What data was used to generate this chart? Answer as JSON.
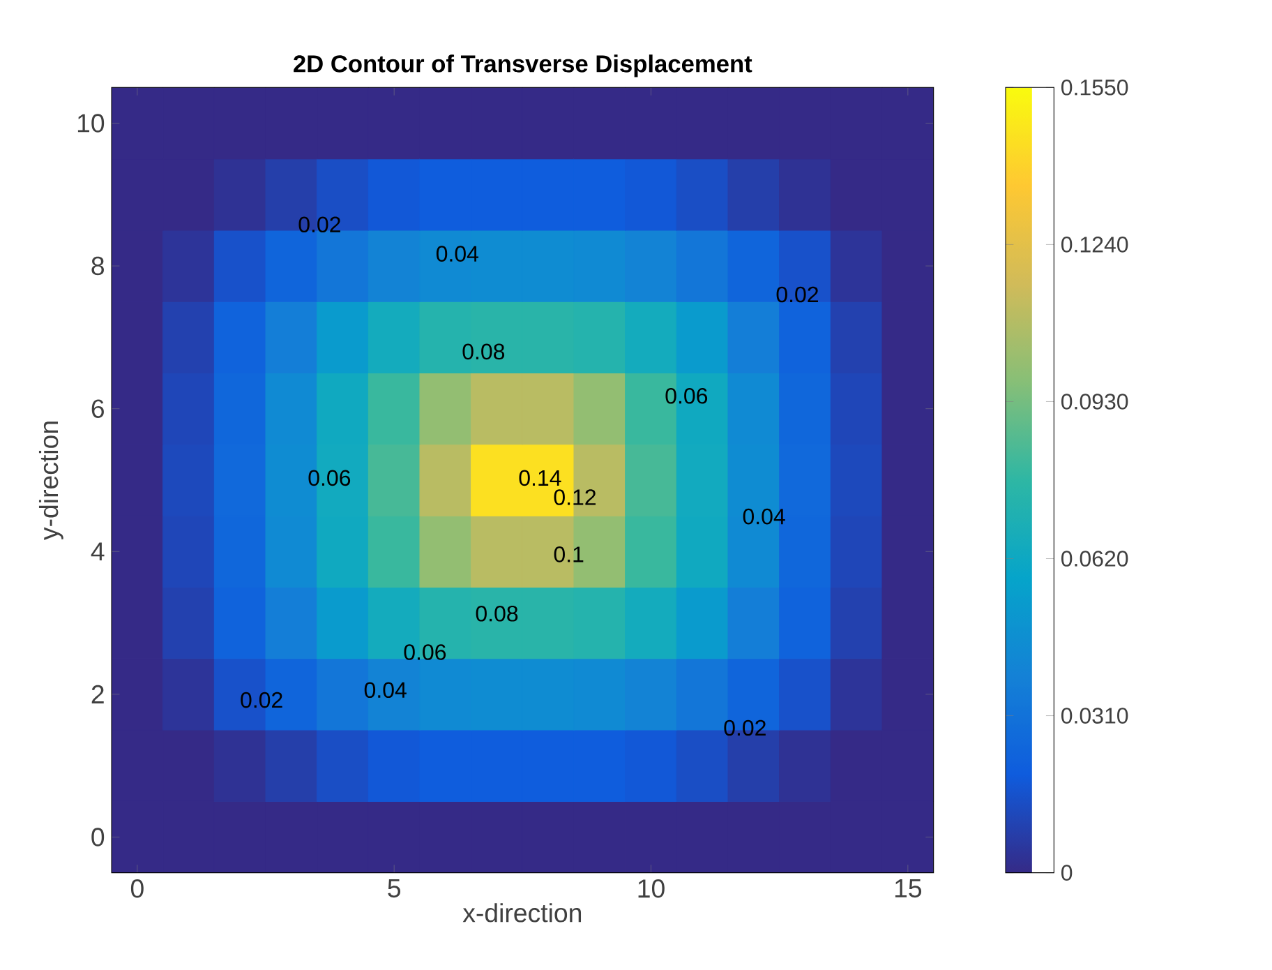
{
  "chart_data": {
    "type": "heatmap",
    "title": "2D Contour of Transverse Displacement",
    "xlabel": "x-direction",
    "ylabel": "y-direction",
    "categories": [
      "0",
      null,
      null,
      null,
      null,
      "5",
      null,
      null,
      null,
      null,
      "10",
      null,
      null,
      null,
      null,
      "15"
    ],
    "y_categories": [
      "10",
      null,
      "8",
      null,
      "6",
      null,
      "4",
      null,
      "2",
      null,
      "0"
    ],
    "cells": [
      [
        0,
        0,
        0,
        0,
        0,
        0,
        0,
        0,
        0,
        0,
        0,
        0,
        0,
        0,
        0,
        0
      ],
      [
        0,
        0,
        0.003,
        0.008,
        0.014,
        0.018,
        0.02,
        0.02,
        0.02,
        0.02,
        0.018,
        0.014,
        0.008,
        0.003,
        0,
        0
      ],
      [
        0,
        0.004,
        0.015,
        0.024,
        0.033,
        0.04,
        0.044,
        0.045,
        0.045,
        0.044,
        0.04,
        0.033,
        0.024,
        0.015,
        0.004,
        0
      ],
      [
        0,
        0.009,
        0.023,
        0.037,
        0.053,
        0.065,
        0.073,
        0.075,
        0.075,
        0.073,
        0.065,
        0.053,
        0.037,
        0.023,
        0.009,
        0
      ],
      [
        0,
        0.011,
        0.025,
        0.044,
        0.063,
        0.08,
        0.1,
        0.11,
        0.11,
        0.1,
        0.08,
        0.063,
        0.044,
        0.025,
        0.011,
        0
      ],
      [
        0,
        0.012,
        0.026,
        0.045,
        0.064,
        0.083,
        0.11,
        0.145,
        0.145,
        0.11,
        0.083,
        0.064,
        0.045,
        0.026,
        0.012,
        0
      ],
      [
        0,
        0.011,
        0.025,
        0.044,
        0.063,
        0.08,
        0.1,
        0.11,
        0.11,
        0.1,
        0.08,
        0.063,
        0.044,
        0.025,
        0.011,
        0
      ],
      [
        0,
        0.009,
        0.023,
        0.037,
        0.053,
        0.065,
        0.073,
        0.075,
        0.075,
        0.073,
        0.065,
        0.053,
        0.037,
        0.023,
        0.009,
        0
      ],
      [
        0,
        0.004,
        0.015,
        0.024,
        0.033,
        0.04,
        0.044,
        0.045,
        0.045,
        0.044,
        0.04,
        0.033,
        0.024,
        0.015,
        0.004,
        0
      ],
      [
        0,
        0,
        0.003,
        0.008,
        0.014,
        0.018,
        0.02,
        0.02,
        0.02,
        0.02,
        0.018,
        0.014,
        0.008,
        0.003,
        0,
        0
      ],
      [
        0,
        0,
        0,
        0,
        0,
        0,
        0,
        0,
        0,
        0,
        0,
        0,
        0,
        0,
        0,
        0
      ]
    ],
    "clim": [
      0,
      0.155
    ],
    "cticks": [
      {
        "value": 0,
        "label": "0"
      },
      {
        "value": 0.031,
        "label": "0.0310"
      },
      {
        "value": 0.062,
        "label": "0.0620"
      },
      {
        "value": 0.093,
        "label": "0.0930"
      },
      {
        "value": 0.124,
        "label": "0.1240"
      },
      {
        "value": 0.155,
        "label": "0.1550"
      }
    ],
    "annotations": [
      "0.02",
      "0.04",
      "0.02",
      "0.08",
      "0.06",
      "0.06",
      "0.14",
      "0.12",
      "0.04",
      "0.1",
      "0.08",
      "0.06",
      "0.04",
      "0.02",
      "0.02"
    ]
  }
}
